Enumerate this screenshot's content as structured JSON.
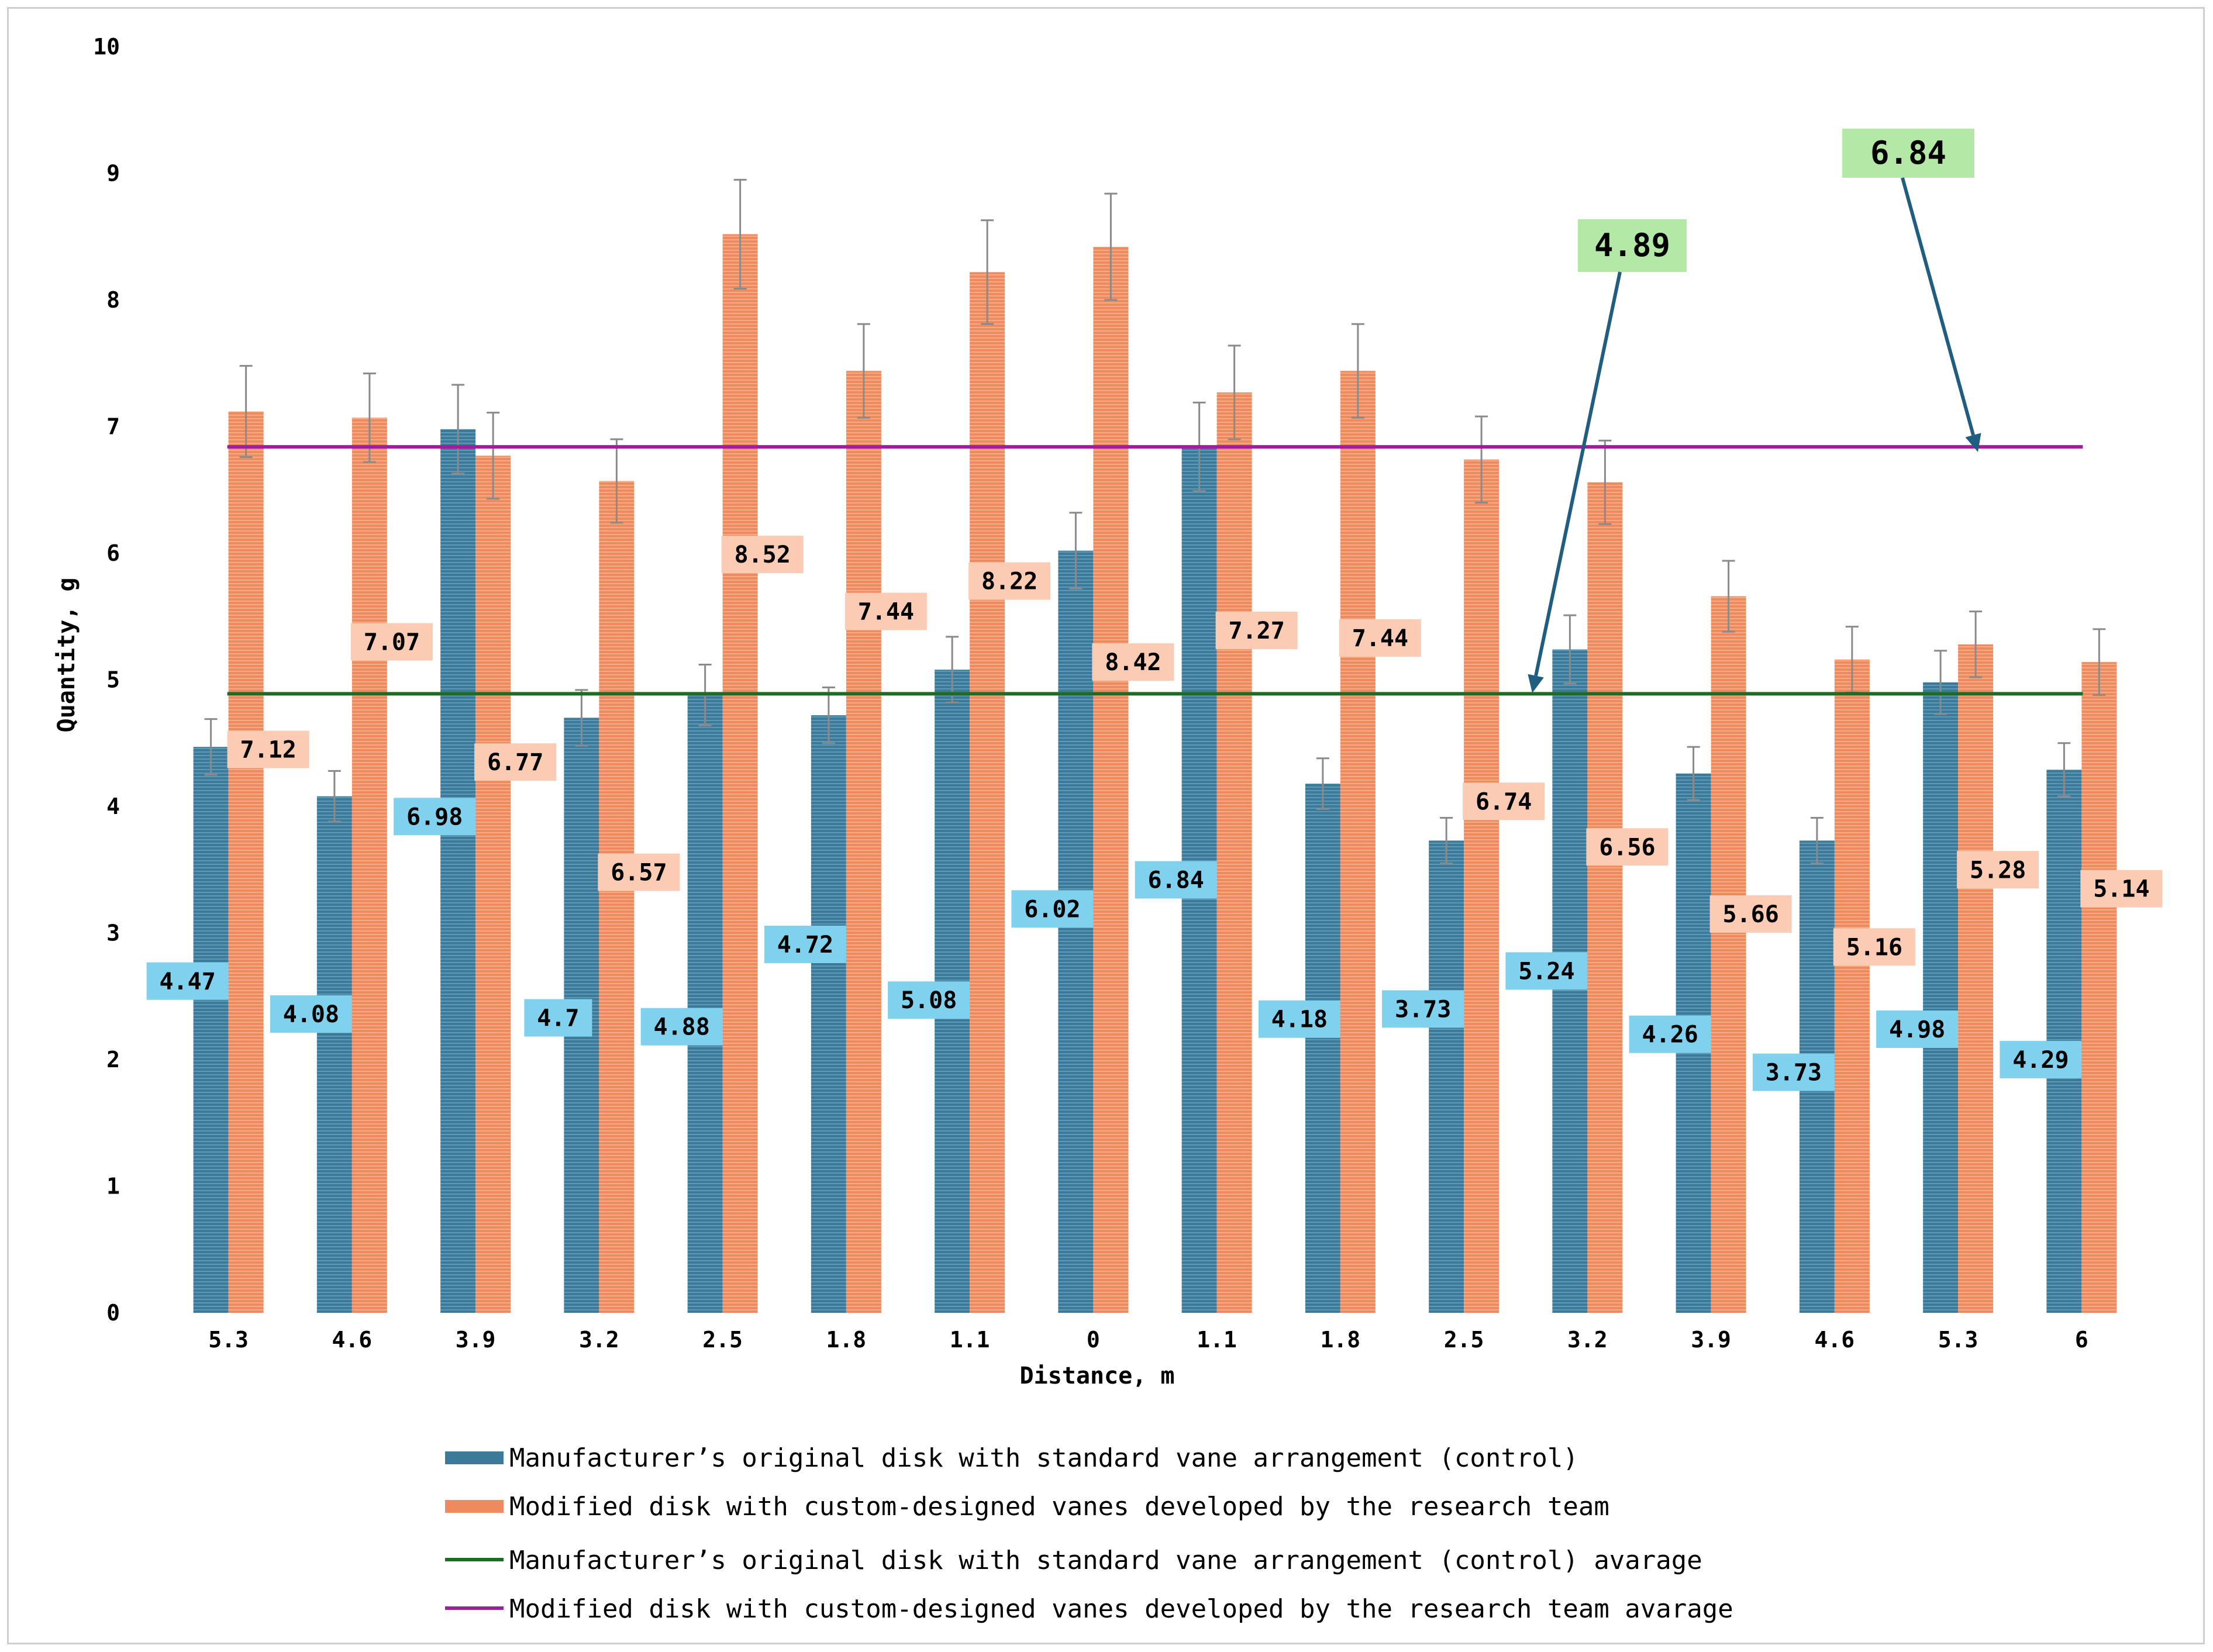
{
  "chart_data": {
    "type": "bar",
    "title": "",
    "xlabel": "Distance, m",
    "ylabel": "Quantity, g",
    "ylim": [
      0,
      10
    ],
    "yticks": [
      "0",
      "1",
      "2",
      "3",
      "4",
      "5",
      "6",
      "7",
      "8",
      "9",
      "10"
    ],
    "grid": false,
    "legend_position": "bottom",
    "categories": [
      "5.3",
      "4.6",
      "3.9",
      "3.2",
      "2.5",
      "1.8",
      "1.1",
      "0",
      "1.1",
      "1.8",
      "2.5",
      "3.2",
      "3.9",
      "4.6",
      "5.3",
      "6"
    ],
    "series": [
      {
        "name": "Manufacturer’s original disk with standard vane arrangement (control)",
        "color": "#3C7A9A",
        "label_bg": "#7FD1EE",
        "values": [
          4.47,
          4.08,
          6.98,
          4.7,
          4.88,
          4.72,
          5.08,
          6.02,
          6.84,
          4.18,
          3.73,
          5.24,
          4.26,
          3.73,
          4.98,
          4.29
        ],
        "labels": [
          "4.47",
          "4.08",
          "6.98",
          "4.7",
          "4.88",
          "4.72",
          "5.08",
          "6.02",
          "6.84",
          "4.18",
          "3.73",
          "5.24",
          "4.26",
          "3.73",
          "4.98",
          "4.29"
        ],
        "errors": [
          0.22,
          0.2,
          0.35,
          0.22,
          0.24,
          0.22,
          0.26,
          0.3,
          0.35,
          0.2,
          0.18,
          0.27,
          0.21,
          0.18,
          0.25,
          0.21
        ]
      },
      {
        "name": "Modified disk with custom-designed vanes developed by the research team",
        "color": "#EE8A5E",
        "label_bg": "#FBCBB3",
        "values": [
          7.12,
          7.07,
          6.77,
          6.57,
          8.52,
          7.44,
          8.22,
          8.42,
          7.27,
          7.44,
          6.74,
          6.56,
          5.66,
          5.16,
          5.28,
          5.14
        ],
        "labels": [
          "7.12",
          "7.07",
          "6.77",
          "6.57",
          "8.52",
          "7.44",
          "8.22",
          "8.42",
          "7.27",
          "7.44",
          "6.74",
          "6.56",
          "5.66",
          "5.16",
          "5.28",
          "5.14"
        ],
        "errors": [
          0.36,
          0.35,
          0.34,
          0.33,
          0.43,
          0.37,
          0.41,
          0.42,
          0.37,
          0.37,
          0.34,
          0.33,
          0.28,
          0.26,
          0.26,
          0.26
        ]
      }
    ],
    "averages": [
      {
        "name": "Manufacturer’s original disk with standard vane arrangement (control) avarage",
        "value": 4.89,
        "color": "#1F6B25",
        "callout": "4.89"
      },
      {
        "name": "Modified disk with custom-designed vanes developed by the research team avarage",
        "value": 6.84,
        "color": "#A01D9C",
        "callout": "6.84"
      }
    ],
    "callout_bg": "#B3E8A6",
    "callout_arrow_color": "#1F5E80"
  }
}
